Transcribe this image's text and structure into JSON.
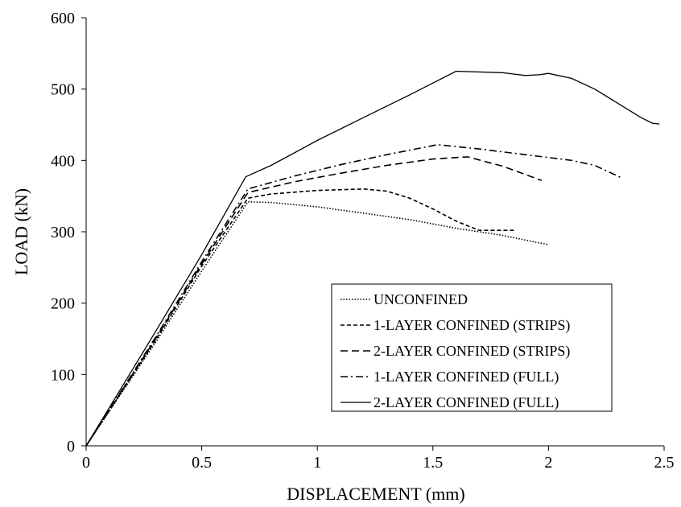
{
  "chart_data": {
    "type": "line",
    "title": "",
    "xlabel": "DISPLACEMENT (mm)",
    "ylabel": "LOAD (kN)",
    "xlim": [
      0,
      2.5
    ],
    "ylim": [
      0,
      600
    ],
    "xticks": [
      0,
      0.5,
      1,
      1.5,
      2,
      2.5
    ],
    "xtick_labels": [
      "0",
      "0.5",
      "1",
      "1.5",
      "2",
      "2.5"
    ],
    "yticks": [
      0,
      100,
      200,
      300,
      400,
      500,
      600
    ],
    "ytick_labels": [
      "0",
      "100",
      "200",
      "300",
      "400",
      "500",
      "600"
    ],
    "grid": false,
    "legend_position": "bottom-right",
    "series": [
      {
        "name": "UNCONFINED",
        "line_style": "dotted",
        "color": "#000000",
        "x": [
          0,
          0.3,
          0.5,
          0.7,
          0.8,
          1.0,
          1.2,
          1.4,
          1.6,
          1.8,
          1.95,
          2.0
        ],
        "y": [
          0,
          145,
          245,
          342,
          341,
          335,
          326,
          317,
          305,
          295,
          285,
          282
        ]
      },
      {
        "name": "1-LAYER CONFINED (STRIPS)",
        "line_style": "dashed-short",
        "color": "#000000",
        "x": [
          0,
          0.3,
          0.5,
          0.7,
          0.8,
          1.0,
          1.2,
          1.3,
          1.4,
          1.5,
          1.6,
          1.7,
          1.85
        ],
        "y": [
          0,
          148,
          252,
          347,
          353,
          358,
          360,
          357,
          347,
          332,
          315,
          302,
          302
        ]
      },
      {
        "name": "2-LAYER CONFINED (STRIPS)",
        "line_style": "dashed-long",
        "color": "#000000",
        "x": [
          0,
          0.3,
          0.5,
          0.7,
          0.9,
          1.1,
          1.3,
          1.5,
          1.65,
          1.8,
          1.97
        ],
        "y": [
          0,
          150,
          255,
          355,
          370,
          382,
          393,
          402,
          405,
          392,
          372
        ]
      },
      {
        "name": "1-LAYER CONFINED (FULL)",
        "line_style": "dash-dot",
        "color": "#000000",
        "x": [
          0,
          0.3,
          0.5,
          0.7,
          0.9,
          1.1,
          1.3,
          1.52,
          1.7,
          1.9,
          2.1,
          2.2,
          2.32
        ],
        "y": [
          0,
          152,
          258,
          360,
          378,
          394,
          408,
          422,
          416,
          408,
          400,
          393,
          375
        ]
      },
      {
        "name": "2-LAYER CONFINED (FULL)",
        "line_style": "solid",
        "color": "#000000",
        "x": [
          0,
          0.3,
          0.5,
          0.69,
          0.8,
          1.0,
          1.2,
          1.4,
          1.6,
          1.8,
          1.9,
          1.96,
          2.0,
          2.1,
          2.2,
          2.3,
          2.4,
          2.45,
          2.48
        ],
        "y": [
          0,
          160,
          268,
          377,
          393,
          428,
          460,
          492,
          525,
          523,
          519,
          520,
          522,
          515,
          500,
          480,
          460,
          452,
          451
        ]
      }
    ]
  }
}
